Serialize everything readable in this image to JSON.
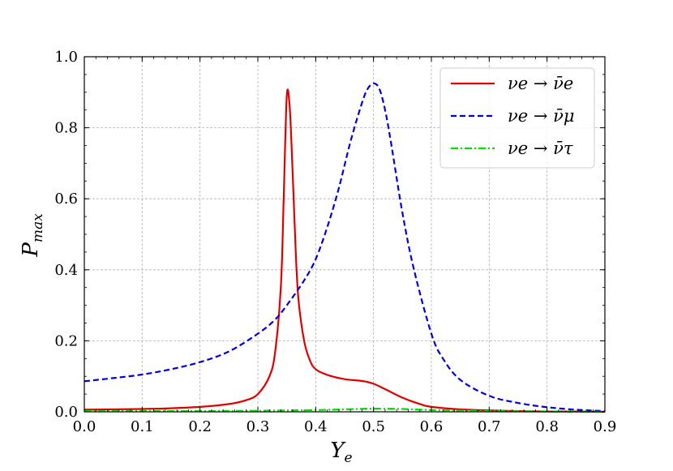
{
  "chart_data": {
    "type": "line",
    "xlabel": "Y",
    "xlabel_sub": "e",
    "ylabel": "P",
    "ylabel_sub": "max",
    "xlim": [
      0.0,
      0.9
    ],
    "ylim": [
      0.0,
      1.0
    ],
    "xticks": [
      "0.0",
      "0.1",
      "0.2",
      "0.3",
      "0.4",
      "0.5",
      "0.6",
      "0.7",
      "0.8",
      "0.9"
    ],
    "yticks": [
      "0.0",
      "0.2",
      "0.4",
      "0.6",
      "0.8",
      "1.0"
    ],
    "grid": true,
    "legend_position": "top-right",
    "series": [
      {
        "name": "νe → ν̄e",
        "color": "#e00000",
        "dash": "solid",
        "x": [
          0.0,
          0.05,
          0.1,
          0.15,
          0.2,
          0.25,
          0.28,
          0.3,
          0.32,
          0.33,
          0.34,
          0.345,
          0.35,
          0.355,
          0.36,
          0.365,
          0.37,
          0.38,
          0.39,
          0.4,
          0.42,
          0.45,
          0.48,
          0.5,
          0.52,
          0.55,
          0.58,
          0.6,
          0.65,
          0.7,
          0.75,
          0.8,
          0.85,
          0.9
        ],
        "y": [
          0.006,
          0.007,
          0.008,
          0.01,
          0.014,
          0.022,
          0.033,
          0.05,
          0.1,
          0.17,
          0.36,
          0.62,
          0.89,
          0.86,
          0.68,
          0.47,
          0.32,
          0.2,
          0.145,
          0.12,
          0.104,
          0.092,
          0.087,
          0.079,
          0.064,
          0.04,
          0.022,
          0.014,
          0.007,
          0.004,
          0.002,
          0.001,
          0.001,
          0.0
        ]
      },
      {
        "name": "νe → ν̄μ",
        "color": "#0000d8",
        "dash": "dashed",
        "x": [
          0.0,
          0.05,
          0.1,
          0.15,
          0.2,
          0.25,
          0.3,
          0.33,
          0.35,
          0.38,
          0.4,
          0.42,
          0.44,
          0.46,
          0.48,
          0.49,
          0.5,
          0.51,
          0.52,
          0.53,
          0.55,
          0.57,
          0.6,
          0.62,
          0.65,
          0.7,
          0.75,
          0.8,
          0.85,
          0.9
        ],
        "y": [
          0.086,
          0.095,
          0.105,
          0.12,
          0.14,
          0.17,
          0.22,
          0.26,
          0.3,
          0.37,
          0.43,
          0.52,
          0.63,
          0.76,
          0.87,
          0.91,
          0.925,
          0.91,
          0.85,
          0.76,
          0.56,
          0.4,
          0.22,
          0.15,
          0.09,
          0.045,
          0.025,
          0.013,
          0.006,
          0.002
        ]
      },
      {
        "name": "νe → ν̄τ",
        "color": "#00e000",
        "dash": "dashdot",
        "x": [
          0.0,
          0.1,
          0.2,
          0.3,
          0.4,
          0.45,
          0.5,
          0.55,
          0.6,
          0.7,
          0.8,
          0.9
        ],
        "y": [
          0.002,
          0.002,
          0.002,
          0.003,
          0.005,
          0.007,
          0.009,
          0.008,
          0.005,
          0.002,
          0.001,
          0.0
        ]
      }
    ]
  }
}
